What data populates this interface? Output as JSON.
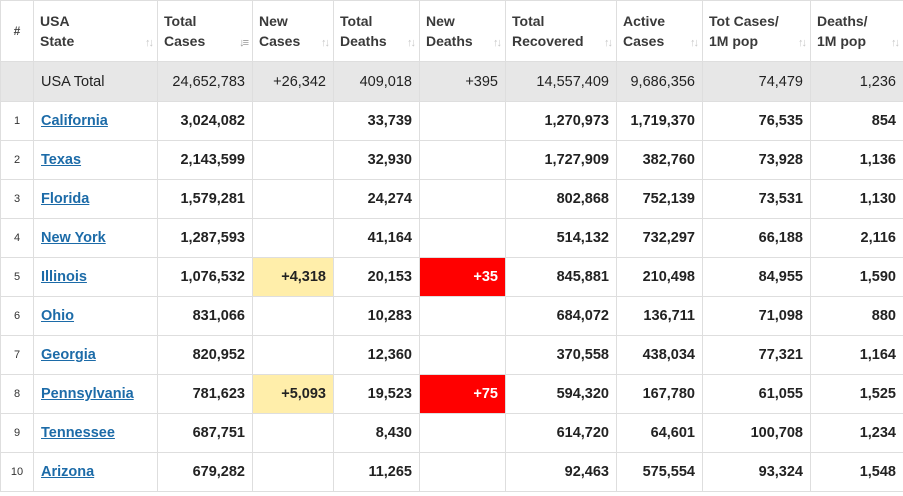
{
  "headers": {
    "num": "#",
    "state": [
      "USA",
      "State"
    ],
    "total_cases": [
      "Total",
      "Cases"
    ],
    "new_cases": [
      "New",
      "Cases"
    ],
    "total_deaths": [
      "Total",
      "Deaths"
    ],
    "new_deaths": [
      "New",
      "Deaths"
    ],
    "total_recovered": [
      "Total",
      "Recovered"
    ],
    "active_cases": [
      "Active",
      "Cases"
    ],
    "tot_cases_1m": [
      "Tot Cases/",
      "1M pop"
    ],
    "deaths_1m": [
      "Deaths/",
      "1M pop"
    ]
  },
  "total": {
    "state": "USA Total",
    "total_cases": "24,652,783",
    "new_cases": "+26,342",
    "total_deaths": "409,018",
    "new_deaths": "+395",
    "total_recovered": "14,557,409",
    "active_cases": "9,686,356",
    "tot_cases_1m": "74,479",
    "deaths_1m": "1,236"
  },
  "rows": [
    {
      "num": "1",
      "state": "California",
      "total_cases": "3,024,082",
      "new_cases": "",
      "total_deaths": "33,739",
      "new_deaths": "",
      "total_recovered": "1,270,973",
      "active_cases": "1,719,370",
      "tot_cases_1m": "76,535",
      "deaths_1m": "854"
    },
    {
      "num": "2",
      "state": "Texas",
      "total_cases": "2,143,599",
      "new_cases": "",
      "total_deaths": "32,930",
      "new_deaths": "",
      "total_recovered": "1,727,909",
      "active_cases": "382,760",
      "tot_cases_1m": "73,928",
      "deaths_1m": "1,136"
    },
    {
      "num": "3",
      "state": "Florida",
      "total_cases": "1,579,281",
      "new_cases": "",
      "total_deaths": "24,274",
      "new_deaths": "",
      "total_recovered": "802,868",
      "active_cases": "752,139",
      "tot_cases_1m": "73,531",
      "deaths_1m": "1,130"
    },
    {
      "num": "4",
      "state": "New York",
      "total_cases": "1,287,593",
      "new_cases": "",
      "total_deaths": "41,164",
      "new_deaths": "",
      "total_recovered": "514,132",
      "active_cases": "732,297",
      "tot_cases_1m": "66,188",
      "deaths_1m": "2,116"
    },
    {
      "num": "5",
      "state": "Illinois",
      "total_cases": "1,076,532",
      "new_cases": "+4,318",
      "total_deaths": "20,153",
      "new_deaths": "+35",
      "total_recovered": "845,881",
      "active_cases": "210,498",
      "tot_cases_1m": "84,955",
      "deaths_1m": "1,590"
    },
    {
      "num": "6",
      "state": "Ohio",
      "total_cases": "831,066",
      "new_cases": "",
      "total_deaths": "10,283",
      "new_deaths": "",
      "total_recovered": "684,072",
      "active_cases": "136,711",
      "tot_cases_1m": "71,098",
      "deaths_1m": "880"
    },
    {
      "num": "7",
      "state": "Georgia",
      "total_cases": "820,952",
      "new_cases": "",
      "total_deaths": "12,360",
      "new_deaths": "",
      "total_recovered": "370,558",
      "active_cases": "438,034",
      "tot_cases_1m": "77,321",
      "deaths_1m": "1,164"
    },
    {
      "num": "8",
      "state": "Pennsylvania",
      "total_cases": "781,623",
      "new_cases": "+5,093",
      "total_deaths": "19,523",
      "new_deaths": "+75",
      "total_recovered": "594,320",
      "active_cases": "167,780",
      "tot_cases_1m": "61,055",
      "deaths_1m": "1,525"
    },
    {
      "num": "9",
      "state": "Tennessee",
      "total_cases": "687,751",
      "new_cases": "",
      "total_deaths": "8,430",
      "new_deaths": "",
      "total_recovered": "614,720",
      "active_cases": "64,601",
      "tot_cases_1m": "100,708",
      "deaths_1m": "1,234"
    },
    {
      "num": "10",
      "state": "Arizona",
      "total_cases": "679,282",
      "new_cases": "",
      "total_deaths": "11,265",
      "new_deaths": "",
      "total_recovered": "92,463",
      "active_cases": "575,554",
      "tot_cases_1m": "93,324",
      "deaths_1m": "1,548"
    }
  ],
  "icons": {
    "sort": "sort-arrows-icon",
    "sort_active": "sort-descending-icon"
  },
  "colors": {
    "new_cases_highlight": "#ffeeaa",
    "new_deaths_highlight": "#ff0000",
    "total_row_bg": "#e7e7e7",
    "link": "#1c6ba8"
  }
}
